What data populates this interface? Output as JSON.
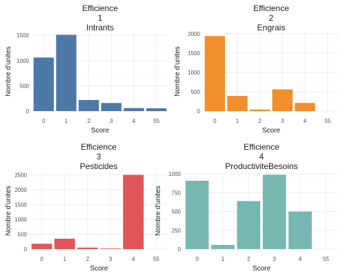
{
  "chart_data": [
    {
      "type": "bar",
      "title_lines": [
        "Efficience",
        "1",
        "Intrants"
      ],
      "xlabel": "Score",
      "ylabel": "Nombre d'unites",
      "categories": [
        "0",
        "1",
        "2",
        "3",
        "4",
        "55"
      ],
      "values": [
        1060,
        1510,
        220,
        160,
        60,
        55
      ],
      "ylim": [
        0,
        1570
      ],
      "yticks": [
        0,
        500,
        1000,
        1500
      ],
      "color": "#4E79A7",
      "grid": true
    },
    {
      "type": "bar",
      "title_lines": [
        "Efficience",
        "2",
        "Engrais"
      ],
      "xlabel": "Score",
      "ylabel": "Nombre d'unites",
      "categories": [
        "0",
        "1",
        "2",
        "3",
        "4",
        "55"
      ],
      "values": [
        1940,
        390,
        40,
        560,
        210,
        0
      ],
      "ylim": [
        0,
        2050
      ],
      "yticks": [
        0,
        500,
        1000,
        1500,
        2000
      ],
      "color": "#F28E2B",
      "grid": true
    },
    {
      "type": "bar",
      "title_lines": [
        "Efficience",
        "3",
        "Pesticides"
      ],
      "xlabel": "Score",
      "ylabel": "Nombre d'unites",
      "categories": [
        "0",
        "1",
        "2",
        "3",
        "4",
        "55"
      ],
      "values": [
        180,
        350,
        50,
        20,
        2500,
        0
      ],
      "ylim": [
        0,
        2580
      ],
      "yticks": [
        0,
        500,
        1000,
        1500,
        2000,
        2500
      ],
      "color": "#E15759",
      "grid": true
    },
    {
      "type": "bar",
      "title_lines": [
        "Efficience",
        "4",
        "ProductiviteBesoins"
      ],
      "xlabel": "Score",
      "ylabel": "Nombre d'unites",
      "categories": [
        "0",
        "1",
        "2",
        "3",
        "4",
        "55"
      ],
      "values": [
        910,
        55,
        640,
        990,
        500,
        0
      ],
      "ylim": [
        0,
        1020
      ],
      "yticks": [
        0,
        250,
        500,
        750,
        1000
      ],
      "color": "#76B7B2",
      "grid": true
    }
  ]
}
